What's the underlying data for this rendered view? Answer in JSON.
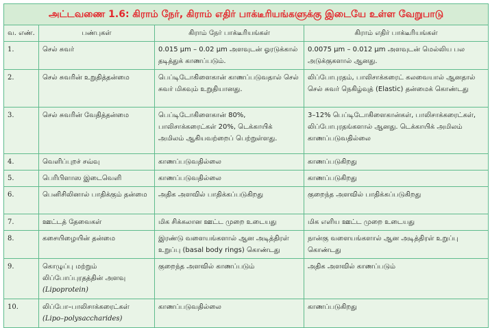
{
  "title": "அட்டவணை 1.6: கிராம் நேர், கிராம் எதிர் பாக்டீரியங்களுக்கு இடையே உள்ள வேறுபாடு",
  "headers": [
    "வ. எண்.",
    "பண்புகள்",
    "கிராம் நேர் பாக்டீரியங்கள்",
    "கிராம் எதிர் பாக்டீரியங்கள்"
  ],
  "rows": [
    {
      "no": "1.",
      "property": "செல் சுவர்",
      "gram_positive": "0.015 µm – 0.02 µm அளவுடன் ஓரடுக்கால் தடித்துக் காணப்படும்.",
      "gram_negative": "0.0075 µm – 0.012 µm அளவுடன் மெல்லிய பல அடுக்குகளால் ஆனது."
    },
    {
      "no": "2.",
      "property": "செல் சுவரின் உறுதித்தன்மை",
      "gram_positive": "பெப்டிடோகிளைகான் காணப்படுவதால் செல் சுவர் மிகவும் உறுதியானது.",
      "gram_negative": "லிப்போபுரதம், பாலிசாக்கரைட் கலவையால் ஆனதால் செல் சுவர் நெகிழ்வுத் (Elastic) தன்மைக் கொண்டது"
    },
    {
      "no": "3.",
      "property": "செல் சுவரின் வேதித்தன்மை",
      "gram_positive": "பெப்டிடோகிளைகான் 80%, பாலிசாக்கரைட்கள் 20%, டெக்காயிக் அமிலம் ஆகியவற்றைப் பெற்றுள்ளது.",
      "gram_negative": "3–12% பெப்டிடோகிளைகான்கள், பாலிசாக்கரைட்கள், லிப்போபுரதங்களால் ஆனது. டெக்காயிக் அமிலம் காணப்படுவதில்லை"
    },
    {
      "no": "4.",
      "property": "வெளிப்புறச் சவ்வு",
      "gram_positive": "காணப்படுவதில்லை",
      "gram_negative": "காணப்படுகிறது"
    },
    {
      "no": "5.",
      "property": "பெரிபிளாஸ இடைவெளி",
      "gram_positive": "காணப்படுவதில்லை",
      "gram_negative": "காணப்படுகிறது"
    },
    {
      "no": "6.",
      "property": "பெனிசிலினால் பாதிக்கும் தன்மை",
      "gram_positive": "அதிக அளவில் பாதிக்கப்படுகிறது",
      "gram_negative": "குறைந்த அளவில் பாதிக்கப்படுகிறது"
    },
    {
      "no": "7.",
      "property": "ஊட்டத் தேவைகள்",
      "gram_positive": "மிக சிக்கலான ஊட்ட முறை உடையது",
      "gram_negative": "மிக எளிய ஊட்ட முறை உடையது"
    },
    {
      "no": "8.",
      "property": "கசையிழையின் தன்மை",
      "gram_positive": "இரண்டு வளையங்களால் ஆன அடித்திரள் உறுப்பு (basal body rings) கொண்டது",
      "gram_negative": "நான்கு வளையங்களால் ஆன அடித்திரள் உறுப்பு கொண்டது"
    },
    {
      "no": "9.",
      "property": "கொழுப்பு மற்றும் லிப்போப்புரதத்தின் அளவு",
      "property_note": "(Lipoprotein)",
      "gram_positive": "குறைந்த அளவில் காணப்படும்",
      "gram_negative": "அதிக அளவில் காணப்படும்"
    },
    {
      "no": "10.",
      "property": "லிப்போ–பாலிசாக்கரைட்கள்",
      "property_note": "(Lipo–polysaccharides)",
      "gram_positive": "காணப்படுவதில்லை",
      "gram_negative": "காணப்படுகிறது"
    }
  ]
}
